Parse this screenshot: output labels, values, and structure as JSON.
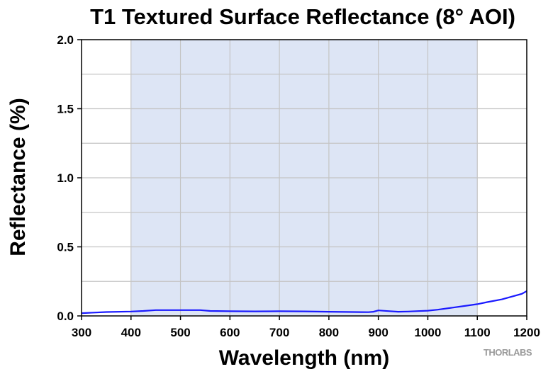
{
  "chart_data": {
    "type": "line",
    "title": "T1 Textured Surface Reflectance (8° AOI)",
    "xlabel": "Wavelength (nm)",
    "ylabel": "Reflectance (%)",
    "xlim": [
      300,
      1200
    ],
    "ylim": [
      0.0,
      2.0
    ],
    "xticks": [
      300,
      400,
      500,
      600,
      700,
      800,
      900,
      1000,
      1100,
      1200
    ],
    "yticks": [
      "0.0",
      "0.5",
      "1.0",
      "1.5",
      "2.0"
    ],
    "grid": true,
    "shaded_band": {
      "x_start": 400,
      "x_end": 1100,
      "color": "#dde5f5"
    },
    "series": [
      {
        "color": "#1a1aff",
        "x": [
          300,
          350,
          400,
          425,
          450,
          500,
          540,
          560,
          600,
          650,
          700,
          750,
          800,
          850,
          880,
          890,
          900,
          920,
          940,
          960,
          980,
          1000,
          1020,
          1050,
          1080,
          1100,
          1120,
          1150,
          1170,
          1190,
          1200
        ],
        "y": [
          0.02,
          0.028,
          0.032,
          0.036,
          0.042,
          0.042,
          0.042,
          0.036,
          0.034,
          0.033,
          0.034,
          0.033,
          0.03,
          0.028,
          0.027,
          0.03,
          0.04,
          0.035,
          0.03,
          0.032,
          0.035,
          0.038,
          0.045,
          0.06,
          0.075,
          0.085,
          0.1,
          0.12,
          0.14,
          0.16,
          0.18
        ]
      }
    ]
  },
  "brand": {
    "logo_text": "THORLABS"
  }
}
